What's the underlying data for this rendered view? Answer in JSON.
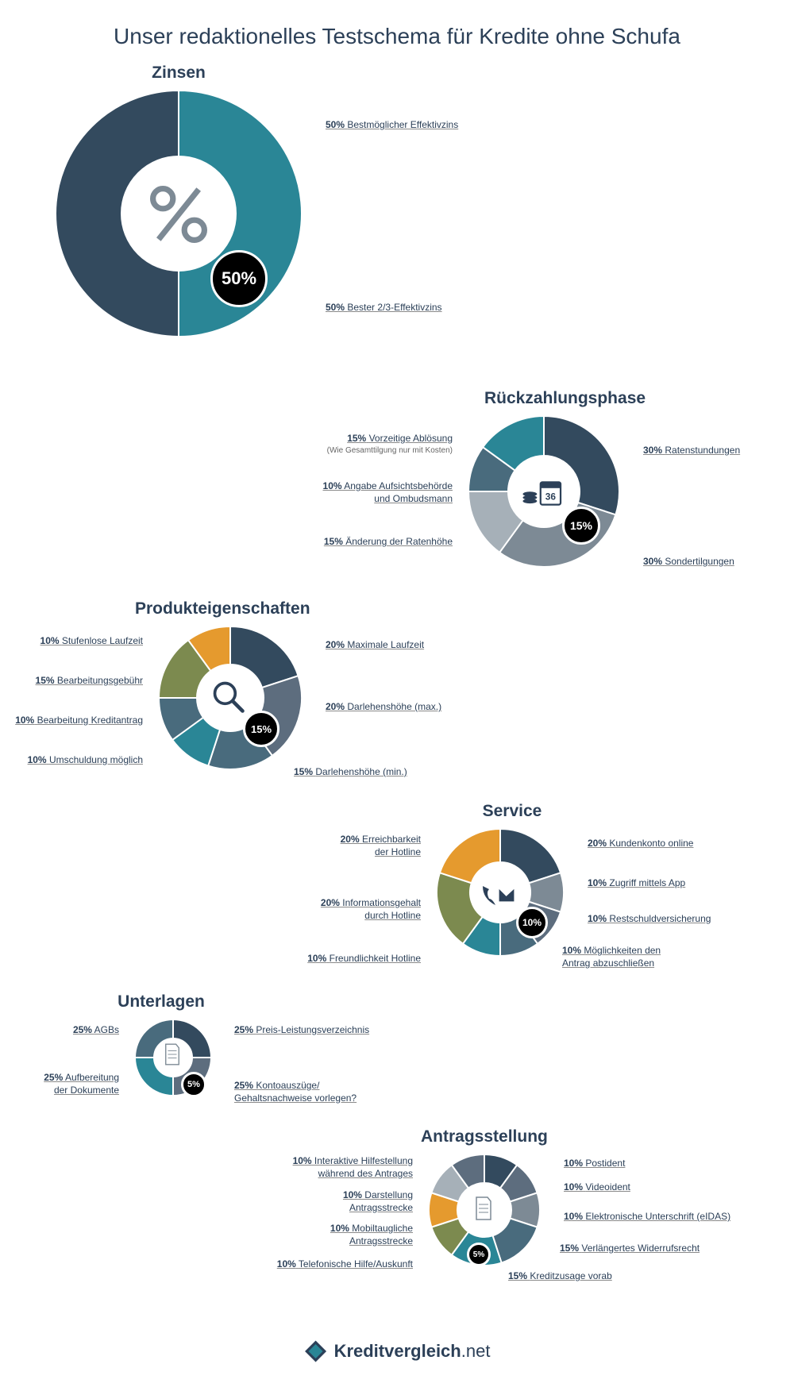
{
  "page_title": "Unser redaktionelles Testschema für Kredite ohne Schufa",
  "colors": {
    "bg": "#ffffff",
    "text": "#2c4058",
    "teal": "#2a8696",
    "dark": "#334a5e",
    "black": "#000000",
    "grey": "#7d8a95",
    "lgrey": "#a6b0b8",
    "olive": "#7c8a4f",
    "orange": "#e59a2e",
    "steel": "#496b7d",
    "slate": "#5d6d7e"
  },
  "charts": {
    "zinsen": {
      "title": "Zinsen",
      "type": "donut",
      "outer_r": 155,
      "inner_r": 72,
      "badge": "50%",
      "slices": [
        {
          "pct": "50%",
          "label": "Bestmöglicher Effektivzins",
          "value": 50,
          "color": "#2a8696"
        },
        {
          "pct": "50%",
          "label": "Bester 2/3-Effektivzins",
          "value": 50,
          "color": "#334a5e"
        }
      ]
    },
    "rueckzahlung": {
      "title": "Rückzahlungsphase",
      "type": "donut",
      "outer_r": 95,
      "inner_r": 45,
      "badge": "15%",
      "slices": [
        {
          "pct": "30%",
          "label": "Ratenstundungen",
          "value": 30,
          "color": "#334a5e"
        },
        {
          "pct": "30%",
          "label": "Sondertilgungen",
          "value": 30,
          "color": "#7d8a95"
        },
        {
          "pct": "15%",
          "label": "Änderung der Ratenhöhe",
          "value": 15,
          "color": "#a6b0b8"
        },
        {
          "pct": "10%",
          "label": "Angabe Aufsichtsbehörde und Ombudsmann",
          "sub": "",
          "value": 10,
          "color": "#496b7d"
        },
        {
          "pct": "15%",
          "label": "Vorzeitige Ablösung",
          "sub": "(Wie Gesamttilgung nur mit Kosten)",
          "value": 15,
          "color": "#2a8696"
        }
      ]
    },
    "produkt": {
      "title": "Produkteigenschaften",
      "type": "donut",
      "outer_r": 90,
      "inner_r": 42,
      "badge": "15%",
      "slices": [
        {
          "pct": "20%",
          "label": "Maximale Laufzeit",
          "value": 20,
          "color": "#334a5e"
        },
        {
          "pct": "20%",
          "label": "Darlehenshöhe (max.)",
          "value": 20,
          "color": "#5d6d7e"
        },
        {
          "pct": "15%",
          "label": "Darlehenshöhe (min.)",
          "value": 15,
          "color": "#496b7d"
        },
        {
          "pct": "10%",
          "label": "Umschuldung möglich",
          "value": 10,
          "color": "#2a8696"
        },
        {
          "pct": "10%",
          "label": "Bearbeitung Kreditantrag",
          "value": 10,
          "color": "#496b7d"
        },
        {
          "pct": "15%",
          "label": "Bearbeitungsgebühr",
          "value": 15,
          "color": "#7c8a4f"
        },
        {
          "pct": "10%",
          "label": "Stufenlose Laufzeit",
          "value": 10,
          "color": "#e59a2e"
        }
      ]
    },
    "service": {
      "title": "Service",
      "type": "donut",
      "outer_r": 80,
      "inner_r": 38,
      "badge": "10%",
      "slices": [
        {
          "pct": "20%",
          "label": "Kundenkonto online",
          "value": 20,
          "color": "#334a5e"
        },
        {
          "pct": "10%",
          "label": "Zugriff mittels App",
          "value": 10,
          "color": "#7d8a95"
        },
        {
          "pct": "10%",
          "label": "Restschuldversicherung",
          "value": 10,
          "color": "#5d6d7e"
        },
        {
          "pct": "10%",
          "label": "Möglichkeiten den Antrag abzuschließen",
          "value": 10,
          "color": "#496b7d"
        },
        {
          "pct": "10%",
          "label": "Freundlichkeit Hotline",
          "value": 10,
          "color": "#2a8696"
        },
        {
          "pct": "20%",
          "label": "Informationsgehalt durch Hotline",
          "value": 20,
          "color": "#7c8a4f"
        },
        {
          "pct": "20%",
          "label": "Erreichbarkeit der Hotline",
          "value": 20,
          "color": "#e59a2e"
        }
      ]
    },
    "unterlagen": {
      "title": "Unterlagen",
      "type": "donut",
      "outer_r": 48,
      "inner_r": 24,
      "badge": "5%",
      "slices": [
        {
          "pct": "25%",
          "label": "Preis-Leistungsverzeichnis",
          "value": 25,
          "color": "#334a5e"
        },
        {
          "pct": "25%",
          "label": "Kontoauszüge/\nGehaltsnachweise vorlegen?",
          "value": 25,
          "color": "#5d6d7e"
        },
        {
          "pct": "25%",
          "label": "Aufbereitung der Dokumente",
          "value": 25,
          "color": "#2a8696"
        },
        {
          "pct": "25%",
          "label": "AGBs",
          "value": 25,
          "color": "#496b7d"
        }
      ]
    },
    "antrag": {
      "title": "Antragsstellung",
      "type": "donut",
      "outer_r": 70,
      "inner_r": 34,
      "badge": "5%",
      "slices": [
        {
          "pct": "10%",
          "label": "Postident",
          "value": 10,
          "color": "#334a5e"
        },
        {
          "pct": "10%",
          "label": "Videoident",
          "value": 10,
          "color": "#5d6d7e"
        },
        {
          "pct": "10%",
          "label": "Elektronische Unterschrift (eIDAS)",
          "value": 10,
          "color": "#7d8a95"
        },
        {
          "pct": "15%",
          "label": "Verlängertes Widerrufsrecht",
          "value": 15,
          "color": "#496b7d"
        },
        {
          "pct": "15%",
          "label": "Kreditzusage vorab",
          "value": 15,
          "color": "#2a8696"
        },
        {
          "pct": "10%",
          "label": "Telefonische Hilfe/Auskunft",
          "value": 10,
          "color": "#7c8a4f"
        },
        {
          "pct": "10%",
          "label": "Mobiltaugliche Antragsstrecke",
          "value": 10,
          "color": "#e59a2e"
        },
        {
          "pct": "10%",
          "label": "Darstellung Antragsstrecke",
          "value": 10,
          "color": "#a6b0b8"
        },
        {
          "pct": "10%",
          "label": "Interaktive Hilfestellung während des Antrages",
          "value": 10,
          "color": "#5d6d7e"
        }
      ]
    }
  },
  "logo": {
    "brand": "Kreditvergleich",
    "tld": ".net"
  }
}
